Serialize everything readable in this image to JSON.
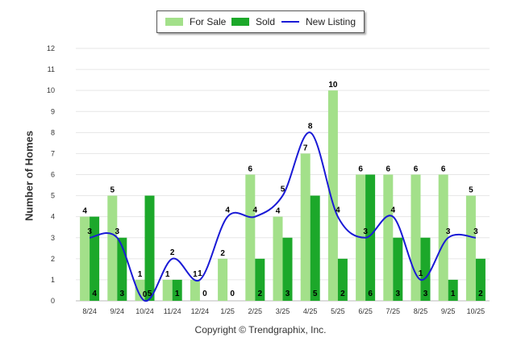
{
  "chart_data": {
    "type": "bar",
    "ylabel": "Number of Homes",
    "xlabel": "",
    "ylim": [
      0,
      12
    ],
    "yticks": [
      0,
      1,
      2,
      3,
      4,
      5,
      6,
      7,
      8,
      9,
      10,
      11,
      12
    ],
    "categories": [
      "8/24",
      "9/24",
      "10/24",
      "11/24",
      "12/24",
      "1/25",
      "2/25",
      "3/25",
      "4/25",
      "5/25",
      "6/25",
      "7/25",
      "8/25",
      "9/25",
      "10/25"
    ],
    "series": [
      {
        "name": "For Sale",
        "kind": "bar",
        "color": "#a3e08a",
        "values": [
          4,
          5,
          1,
          1,
          1,
          2,
          6,
          4,
          7,
          10,
          6,
          6,
          6,
          6,
          5
        ]
      },
      {
        "name": "Sold",
        "kind": "bar",
        "color": "#1ca82a",
        "values": [
          4,
          3,
          5,
          1,
          0,
          0,
          2,
          3,
          5,
          2,
          6,
          3,
          3,
          1,
          2
        ]
      },
      {
        "name": "New Listing",
        "kind": "line",
        "color": "#1a1ad6",
        "values": [
          3,
          3,
          0,
          2,
          1,
          4,
          4,
          5,
          8,
          4,
          3,
          4,
          1,
          3,
          3
        ]
      }
    ],
    "legend_position": "top-center",
    "grid": true
  },
  "legend": {
    "for_sale": "For Sale",
    "sold": "Sold",
    "new_listing": "New Listing"
  },
  "footer": {
    "copyright": "Copyright © Trendgraphix, Inc."
  }
}
